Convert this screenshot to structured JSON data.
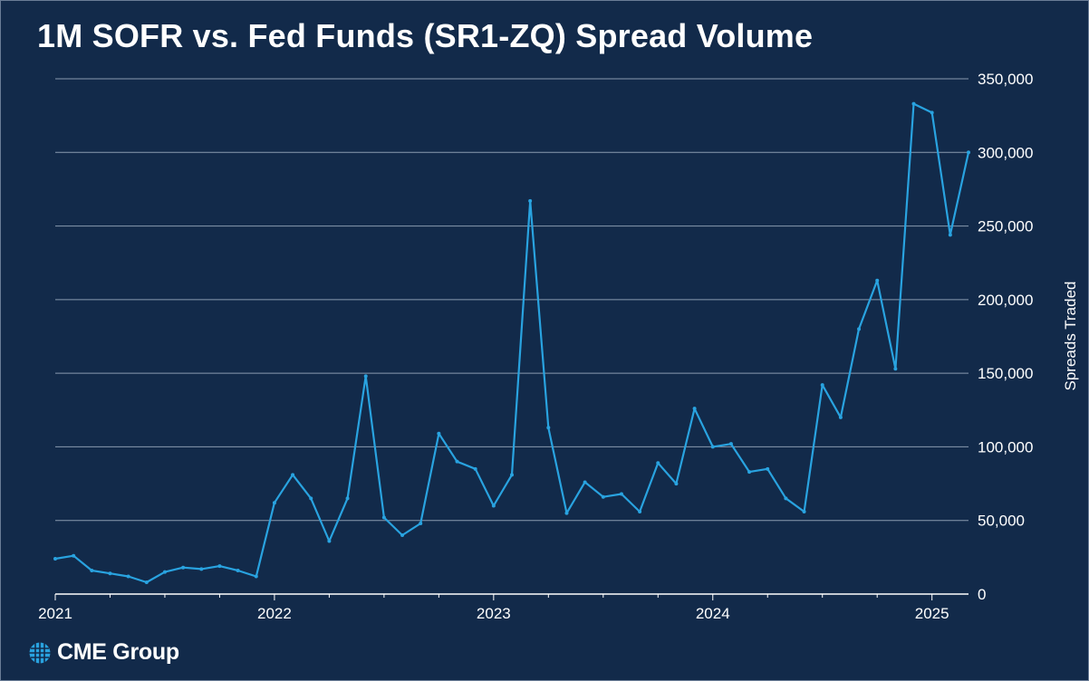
{
  "title": "1M SOFR vs. Fed Funds (SR1-ZQ) Spread Volume",
  "brand": {
    "name": "CME Group"
  },
  "colors": {
    "background": "#122a4a",
    "line": "#29a3e0",
    "grid": "#8a9bb0",
    "text": "#ffffff"
  },
  "chart_data": {
    "type": "line",
    "title": "1M SOFR vs. Fed Funds (SR1-ZQ) Spread Volume",
    "xlabel": "",
    "ylabel": "Spreads Traded",
    "y_axis_side": "right",
    "ylim": [
      0,
      350000
    ],
    "y_ticks": [
      0,
      50000,
      100000,
      150000,
      200000,
      250000,
      300000,
      350000
    ],
    "y_tick_labels": [
      "0",
      "50,000",
      "100,000",
      "150,000",
      "200,000",
      "250,000",
      "300,000",
      "350,000"
    ],
    "xlim": [
      "2021-01",
      "2025-03"
    ],
    "x_tick_labels": [
      "2021",
      "2022",
      "2023",
      "2024",
      "2025"
    ],
    "grid": "horizontal",
    "legend": "none",
    "series": [
      {
        "x": [
          "2021-01",
          "2021-02",
          "2021-03",
          "2021-04",
          "2021-05",
          "2021-06",
          "2021-07",
          "2021-08",
          "2021-09",
          "2021-10",
          "2021-11",
          "2021-12",
          "2022-01",
          "2022-02",
          "2022-03",
          "2022-04",
          "2022-05",
          "2022-06",
          "2022-07",
          "2022-08",
          "2022-09",
          "2022-10",
          "2022-11",
          "2022-12",
          "2023-01",
          "2023-02",
          "2023-03",
          "2023-04",
          "2023-05",
          "2023-06",
          "2023-07",
          "2023-08",
          "2023-09",
          "2023-10",
          "2023-11",
          "2023-12",
          "2024-01",
          "2024-02",
          "2024-03",
          "2024-04",
          "2024-05",
          "2024-06",
          "2024-07",
          "2024-08",
          "2024-09",
          "2024-10",
          "2024-11",
          "2024-12",
          "2025-01",
          "2025-02",
          "2025-03"
        ],
        "values": [
          24000,
          26000,
          16000,
          14000,
          12000,
          8000,
          15000,
          18000,
          17000,
          19000,
          16000,
          12000,
          62000,
          81000,
          65000,
          36000,
          65000,
          148000,
          52000,
          40000,
          48000,
          109000,
          90000,
          85000,
          60000,
          81000,
          267000,
          113000,
          55000,
          76000,
          66000,
          68000,
          56000,
          89000,
          75000,
          126000,
          100000,
          102000,
          83000,
          85000,
          65000,
          56000,
          142000,
          120000,
          180000,
          213000,
          153000,
          333000,
          327000,
          244000,
          300000
        ]
      }
    ]
  }
}
